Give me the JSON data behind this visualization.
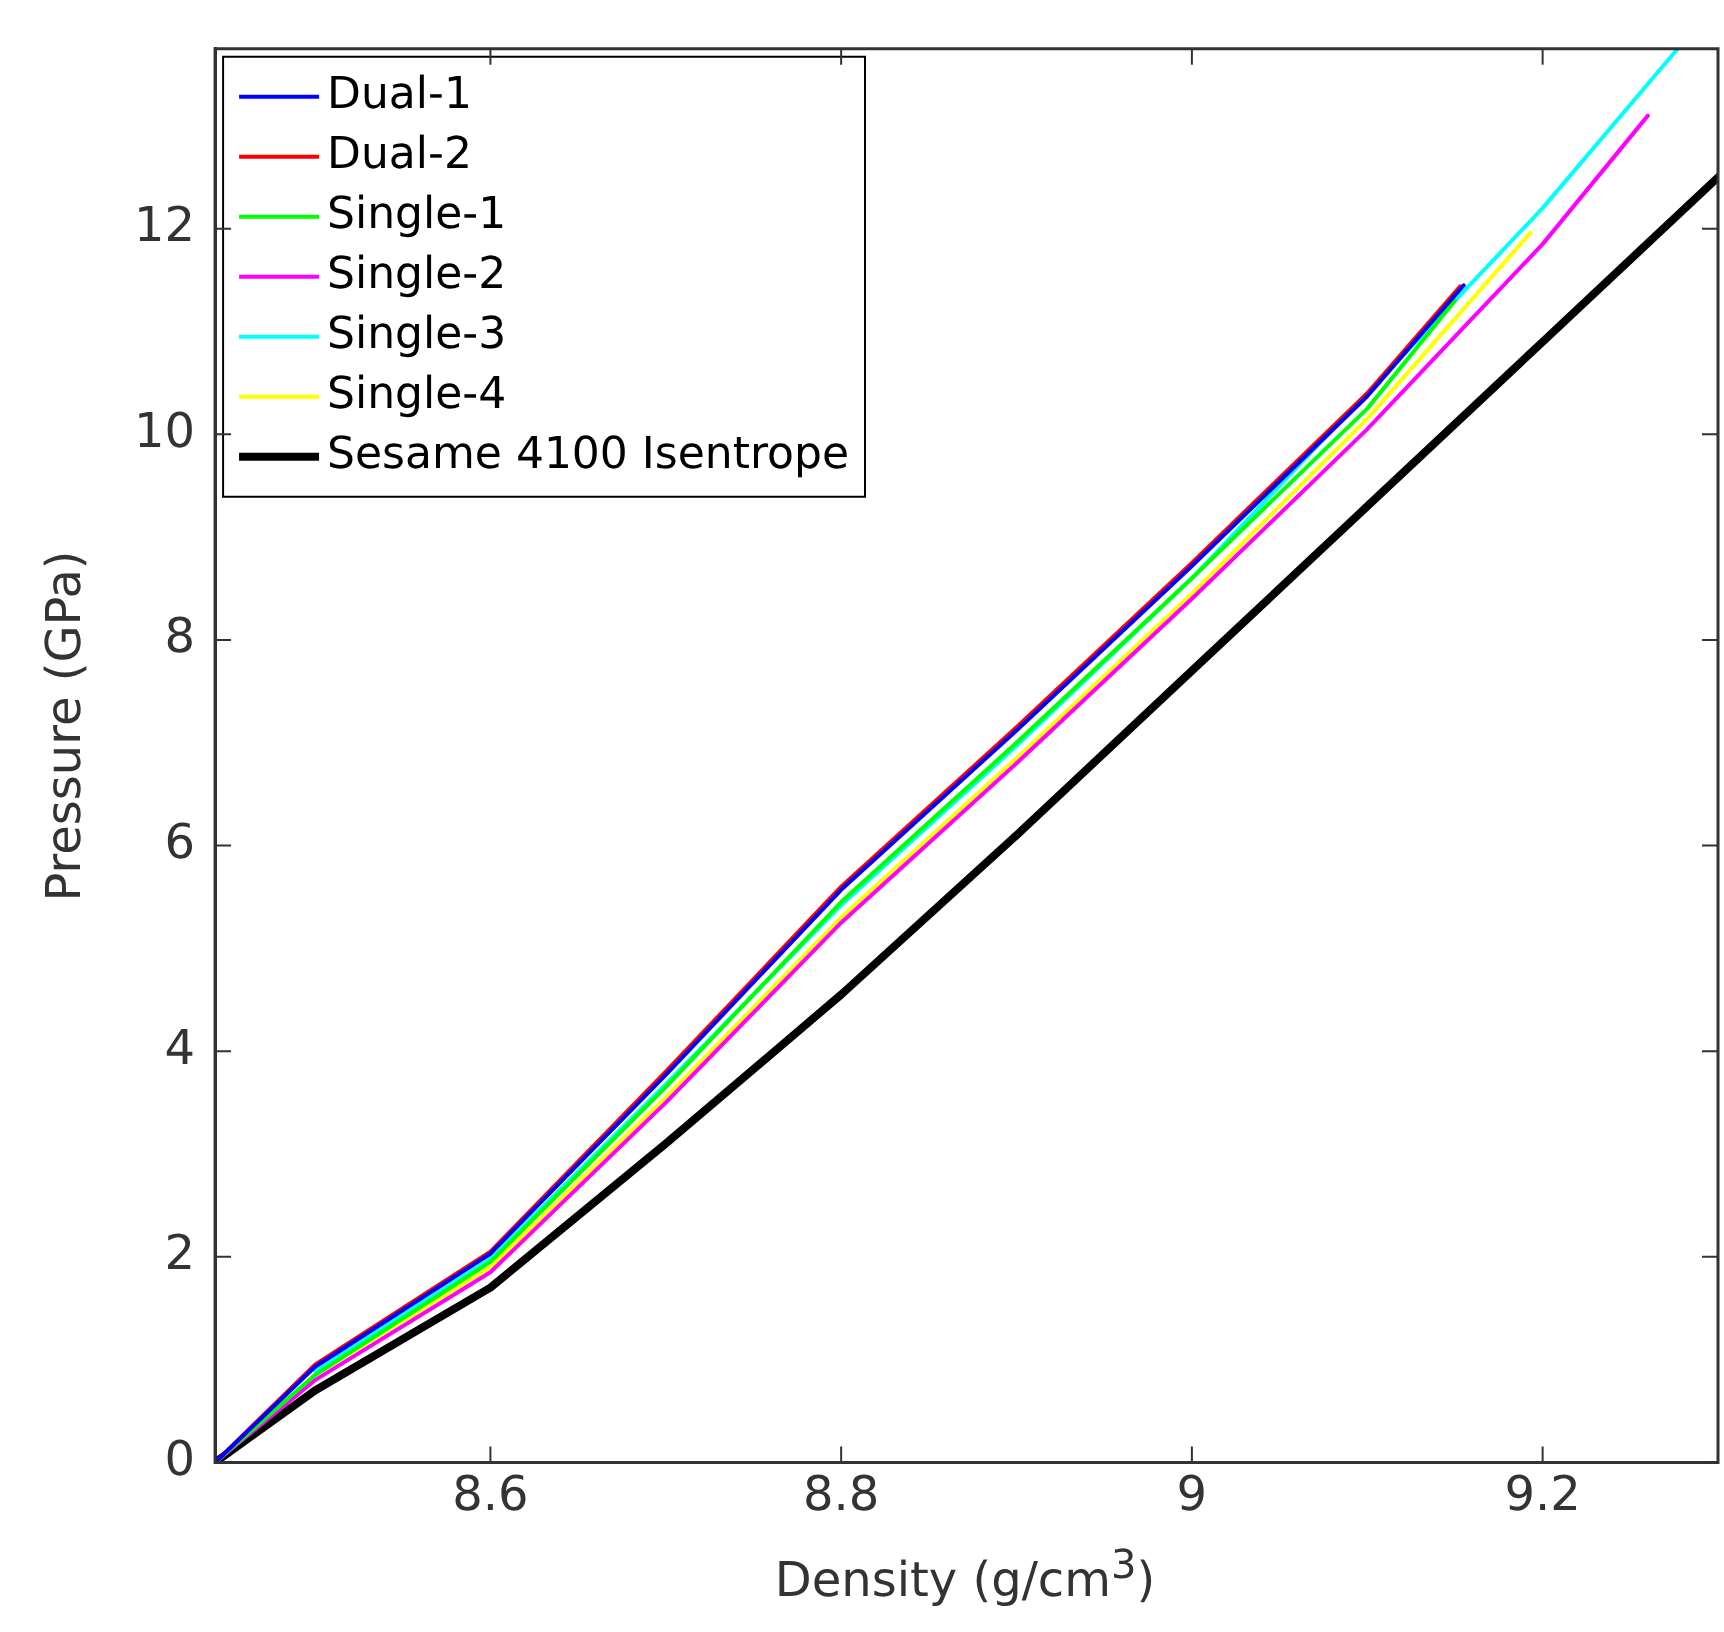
{
  "chart_data": {
    "type": "line",
    "xlabel": "Density (g/cm$^{3}$)",
    "ylabel": "Pressure (GPa)",
    "xlim": [
      8.443,
      9.3
    ],
    "ylim": [
      0,
      13.75
    ],
    "xticks": [
      8.6,
      8.8,
      9,
      9.2
    ],
    "yticks": [
      0,
      2,
      4,
      6,
      8,
      10,
      12
    ],
    "grid": false,
    "legend": "top left",
    "marker": "none",
    "line_style": "solid",
    "series": [
      {
        "name": "Dual-1",
        "color": "#0000ff",
        "x": [
          8.443,
          8.5,
          8.6,
          8.7,
          8.8,
          8.9,
          9.0,
          9.1,
          9.155
        ],
        "values": [
          0,
          0.93,
          2.03,
          3.77,
          5.57,
          7.12,
          8.72,
          10.37,
          11.45
        ]
      },
      {
        "name": "Dual-2",
        "color": "#ff0000",
        "x": [
          8.443,
          8.5,
          8.6,
          8.7,
          8.8,
          8.9,
          9.0,
          9.1,
          9.153
        ],
        "values": [
          0,
          0.95,
          2.05,
          3.8,
          5.6,
          7.15,
          8.75,
          10.4,
          11.44
        ]
      },
      {
        "name": "Single-1",
        "color": "#00ff00",
        "x": [
          8.443,
          8.5,
          8.6,
          8.7,
          8.8,
          8.9,
          9.0,
          9.1,
          9.15
        ],
        "values": [
          0,
          0.85,
          1.95,
          3.65,
          5.45,
          7.0,
          8.6,
          10.25,
          11.3
        ]
      },
      {
        "name": "Single-2",
        "color": "#ff00ff",
        "x": [
          8.443,
          8.5,
          8.6,
          8.7,
          8.8,
          8.9,
          9.0,
          9.1,
          9.2,
          9.26
        ],
        "values": [
          0,
          0.8,
          1.85,
          3.5,
          5.25,
          6.8,
          8.4,
          10.05,
          11.85,
          13.1
        ]
      },
      {
        "name": "Single-3",
        "color": "#00ffff",
        "x": [
          8.5,
          8.6,
          8.7,
          8.8,
          8.9,
          9.0,
          9.1,
          9.2,
          9.277
        ],
        "values": [
          0.89,
          1.98,
          3.68,
          5.42,
          6.97,
          8.6,
          10.4,
          12.2,
          13.75
        ]
      },
      {
        "name": "Single-4",
        "color": "#ffff00",
        "x": [
          8.443,
          8.5,
          8.6,
          8.7,
          8.8,
          8.9,
          9.0,
          9.1,
          9.193
        ],
        "values": [
          0,
          0.85,
          1.9,
          3.55,
          5.3,
          6.85,
          8.45,
          10.15,
          11.96
        ]
      },
      {
        "name": "Sesame 4100 Isentrope",
        "color": "#000000",
        "x": [
          8.443,
          8.5,
          8.6,
          8.7,
          8.8,
          8.9,
          9.0,
          9.1,
          9.2,
          9.3
        ],
        "values": [
          0,
          0.7,
          1.7,
          3.1,
          4.55,
          6.1,
          7.7,
          9.3,
          10.9,
          12.5
        ]
      }
    ]
  }
}
